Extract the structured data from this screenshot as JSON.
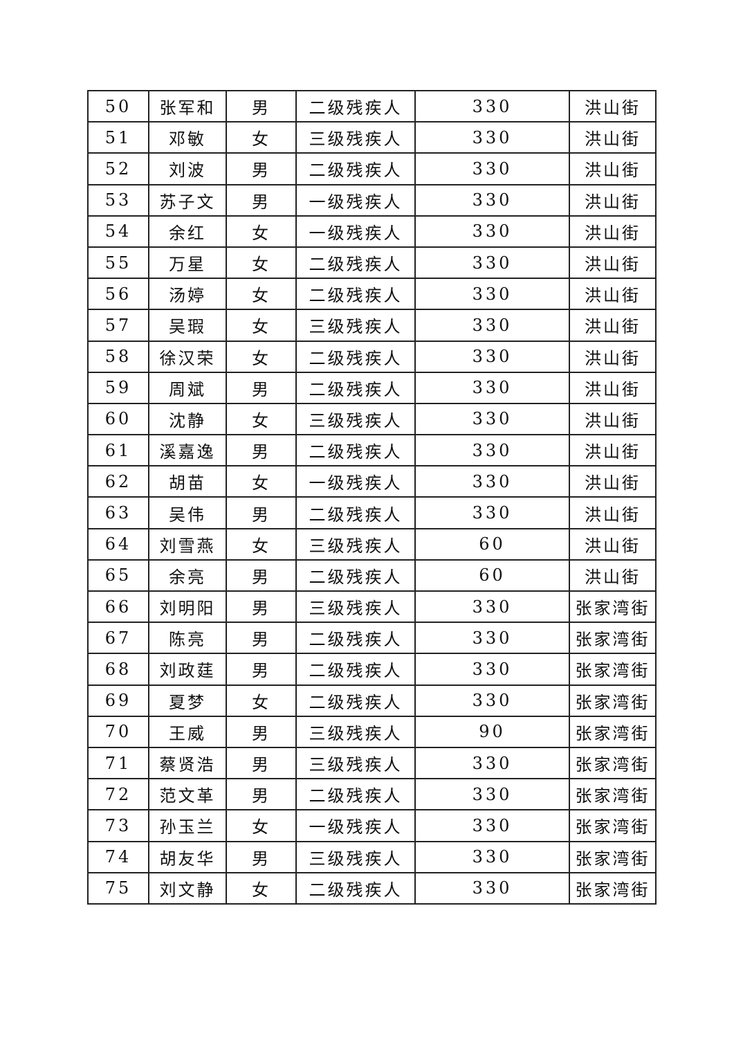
{
  "table": {
    "rows": [
      [
        "50",
        "张军和",
        "男",
        "二级残疾人",
        "330",
        "洪山街"
      ],
      [
        "51",
        "邓敏",
        "女",
        "三级残疾人",
        "330",
        "洪山街"
      ],
      [
        "52",
        "刘波",
        "男",
        "二级残疾人",
        "330",
        "洪山街"
      ],
      [
        "53",
        "苏子文",
        "男",
        "一级残疾人",
        "330",
        "洪山街"
      ],
      [
        "54",
        "余红",
        "女",
        "一级残疾人",
        "330",
        "洪山街"
      ],
      [
        "55",
        "万星",
        "女",
        "二级残疾人",
        "330",
        "洪山街"
      ],
      [
        "56",
        "汤婷",
        "女",
        "二级残疾人",
        "330",
        "洪山街"
      ],
      [
        "57",
        "吴瑕",
        "女",
        "三级残疾人",
        "330",
        "洪山街"
      ],
      [
        "58",
        "徐汉荣",
        "女",
        "二级残疾人",
        "330",
        "洪山街"
      ],
      [
        "59",
        "周斌",
        "男",
        "二级残疾人",
        "330",
        "洪山街"
      ],
      [
        "60",
        "沈静",
        "女",
        "三级残疾人",
        "330",
        "洪山街"
      ],
      [
        "61",
        "溪嘉逸",
        "男",
        "二级残疾人",
        "330",
        "洪山街"
      ],
      [
        "62",
        "胡苗",
        "女",
        "一级残疾人",
        "330",
        "洪山街"
      ],
      [
        "63",
        "吴伟",
        "男",
        "二级残疾人",
        "330",
        "洪山街"
      ],
      [
        "64",
        "刘雪燕",
        "女",
        "三级残疾人",
        "60",
        "洪山街"
      ],
      [
        "65",
        "余亮",
        "男",
        "二级残疾人",
        "60",
        "洪山街"
      ],
      [
        "66",
        "刘明阳",
        "男",
        "三级残疾人",
        "330",
        "张家湾街"
      ],
      [
        "67",
        "陈亮",
        "男",
        "二级残疾人",
        "330",
        "张家湾街"
      ],
      [
        "68",
        "刘政莛",
        "男",
        "二级残疾人",
        "330",
        "张家湾街"
      ],
      [
        "69",
        "夏梦",
        "女",
        "二级残疾人",
        "330",
        "张家湾街"
      ],
      [
        "70",
        "王威",
        "男",
        "三级残疾人",
        "90",
        "张家湾街"
      ],
      [
        "71",
        "蔡贤浩",
        "男",
        "三级残疾人",
        "330",
        "张家湾街"
      ],
      [
        "72",
        "范文革",
        "男",
        "二级残疾人",
        "330",
        "张家湾街"
      ],
      [
        "73",
        "孙玉兰",
        "女",
        "一级残疾人",
        "330",
        "张家湾街"
      ],
      [
        "74",
        "胡友华",
        "男",
        "三级残疾人",
        "330",
        "张家湾街"
      ],
      [
        "75",
        "刘文静",
        "女",
        "二级残疾人",
        "330",
        "张家湾街"
      ]
    ]
  }
}
